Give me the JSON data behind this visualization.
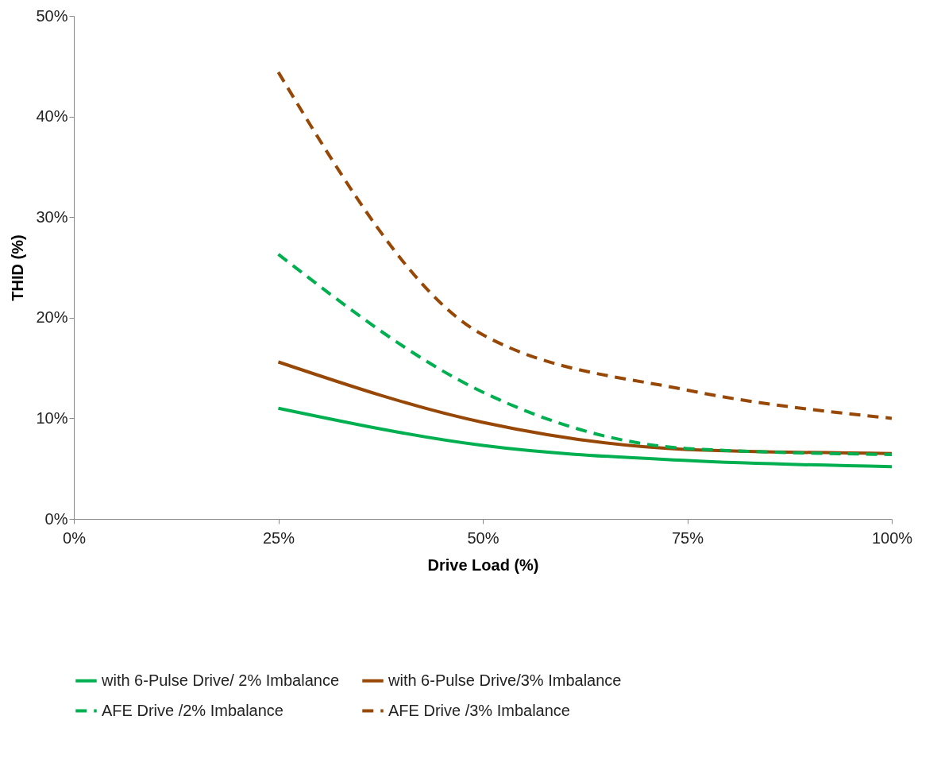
{
  "chart_data": {
    "type": "line",
    "xlabel": "Drive Load (%)",
    "ylabel": "THID (%)",
    "x": [
      25,
      50,
      75,
      100
    ],
    "xlim": [
      0,
      100
    ],
    "xticks": [
      {
        "value": 0,
        "label": "0%"
      },
      {
        "value": 25,
        "label": "25%"
      },
      {
        "value": 50,
        "label": "50%"
      },
      {
        "value": 75,
        "label": "75%"
      },
      {
        "value": 100,
        "label": "100%"
      }
    ],
    "ylim": [
      0,
      50
    ],
    "yticks": [
      {
        "value": 0,
        "label": "0%"
      },
      {
        "value": 10,
        "label": "10%"
      },
      {
        "value": 20,
        "label": "20%"
      },
      {
        "value": 30,
        "label": "30%"
      },
      {
        "value": 40,
        "label": "40%"
      },
      {
        "value": 50,
        "label": "50%"
      }
    ],
    "grid": false,
    "legend": "bottom",
    "marker": "none",
    "series": [
      {
        "name": "with 6-Pulse Drive/ 2% Imbalance",
        "color": "#00b050",
        "line_style": "solid",
        "values": [
          11.0,
          7.3,
          5.8,
          5.2
        ]
      },
      {
        "name": "with 6-Pulse Drive/3% Imbalance",
        "color": "#974706",
        "line_style": "solid",
        "values": [
          15.6,
          9.6,
          6.9,
          6.5
        ]
      },
      {
        "name": "AFE Drive /2% Imbalance",
        "color": "#00b050",
        "line_style": "dashed",
        "values": [
          26.3,
          12.6,
          7.0,
          6.4
        ]
      },
      {
        "name": "AFE Drive /3% Imbalance",
        "color": "#974706",
        "line_style": "dashed",
        "values": [
          44.4,
          18.3,
          12.8,
          10.0
        ]
      }
    ]
  }
}
